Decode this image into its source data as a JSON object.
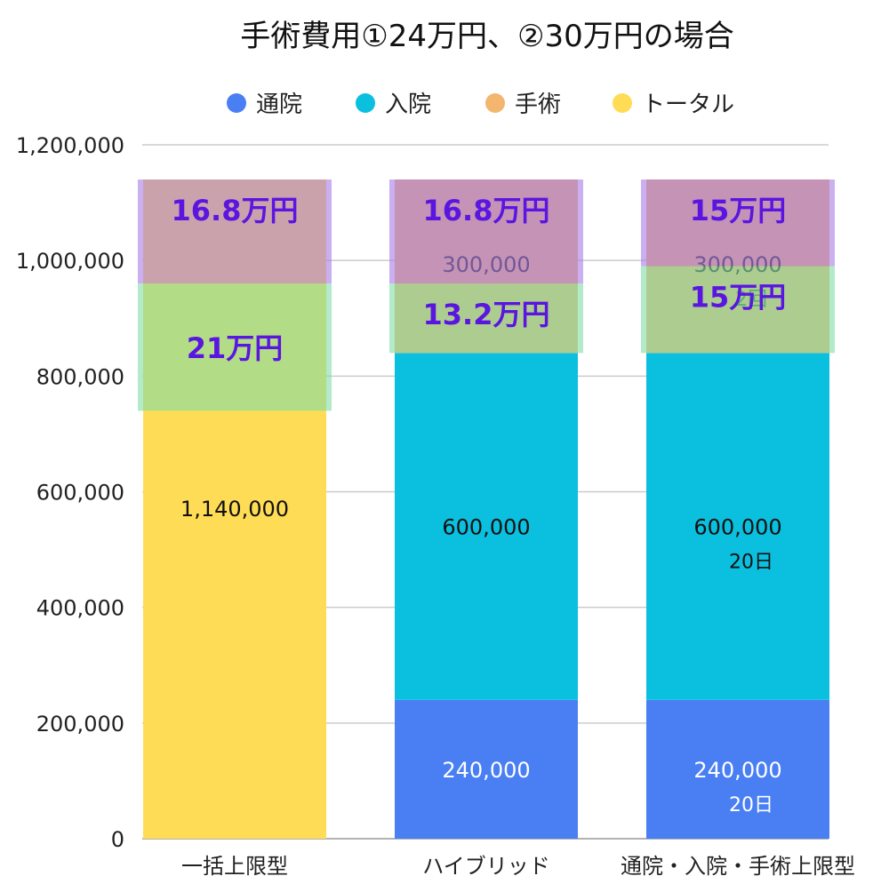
{
  "chart_data": {
    "type": "bar",
    "stacked": true,
    "title": "手術費用①24万円、②30万円の場合",
    "xlabel": "",
    "ylabel": "",
    "ylim": [
      0,
      1200000
    ],
    "yticks": [
      "0",
      "200,000",
      "400,000",
      "600,000",
      "800,000",
      "1,000,000",
      "1,200,000"
    ],
    "grid": true,
    "legend_position": "top",
    "categories": [
      "一括上限型",
      "ハイブリッド",
      "通院・入院・手術上限型"
    ],
    "series": [
      {
        "name": "通院",
        "color": "#4a7ff4",
        "values": [
          0,
          240000,
          240000
        ],
        "labels": [
          "",
          "240,000",
          "240,000"
        ],
        "sublabels": [
          "",
          "",
          "20日"
        ]
      },
      {
        "name": "入院",
        "color": "#0bbfdf",
        "values": [
          0,
          600000,
          600000
        ],
        "labels": [
          "",
          "600,000",
          "600,000"
        ],
        "sublabels": [
          "",
          "",
          "20日"
        ]
      },
      {
        "name": "手術",
        "color": "#f2b66e",
        "values": [
          0,
          300000,
          300000
        ],
        "labels": [
          "",
          "300,000",
          "300,000"
        ],
        "sublabels": [
          "",
          "",
          "2回"
        ]
      },
      {
        "name": "トータル",
        "color": "#ffdc55",
        "values": [
          1140000,
          0,
          0
        ],
        "labels": [
          "1,140,000",
          "",
          ""
        ],
        "sublabels": [
          "",
          "",
          ""
        ]
      }
    ],
    "annotations": [
      {
        "category": 0,
        "text": "16.8万円",
        "y_from": 960000,
        "y_to": 1140000,
        "color": "#a77be6"
      },
      {
        "category": 0,
        "text": "21万円",
        "y_from": 740000,
        "y_to": 960000,
        "color": "#7fdca6"
      },
      {
        "category": 1,
        "text": "16.8万円",
        "y_from": 960000,
        "y_to": 1140000,
        "color": "#a77be6"
      },
      {
        "category": 1,
        "text": "13.2万円",
        "y_from": 840000,
        "y_to": 960000,
        "color": "#7fdca6"
      },
      {
        "category": 2,
        "text": "15万円",
        "y_from": 990000,
        "y_to": 1140000,
        "color": "#a77be6"
      },
      {
        "category": 2,
        "text": "15万円",
        "y_from": 840000,
        "y_to": 990000,
        "color": "#7fdca6"
      }
    ],
    "annotation_text_color": "#5a16e0"
  }
}
